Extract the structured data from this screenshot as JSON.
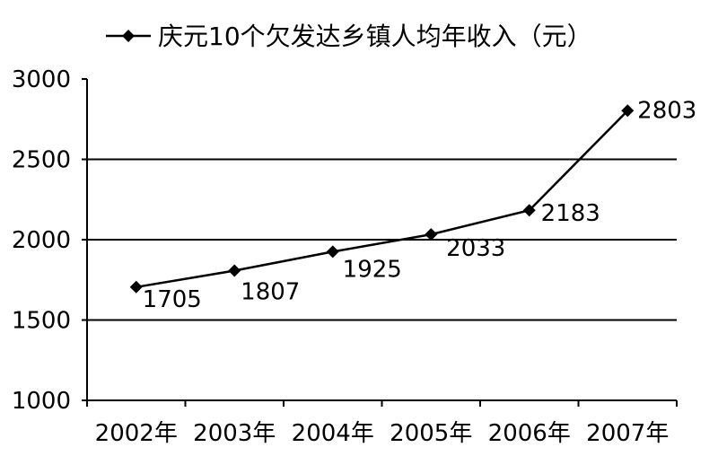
{
  "chart_data": {
    "type": "line",
    "title": "",
    "xlabel": "",
    "ylabel": "",
    "categories": [
      "2002年",
      "2003年",
      "2004年",
      "2005年",
      "2006年",
      "2007年"
    ],
    "series": [
      {
        "name": "庆元10个欠发达乡镇人均年收入（元）",
        "values": [
          1705,
          1807,
          1925,
          2033,
          2183,
          2803
        ],
        "data_labels": [
          "1705",
          "1807",
          "1925",
          "2033",
          "2183",
          "2803"
        ]
      }
    ],
    "ylim": [
      1000,
      3000
    ],
    "yticks": [
      "1000",
      "1500",
      "2000",
      "2500",
      "3000"
    ],
    "grid": "horizontal",
    "legend": "top",
    "colors": {
      "line": "#000000",
      "grid": "#000000"
    }
  }
}
